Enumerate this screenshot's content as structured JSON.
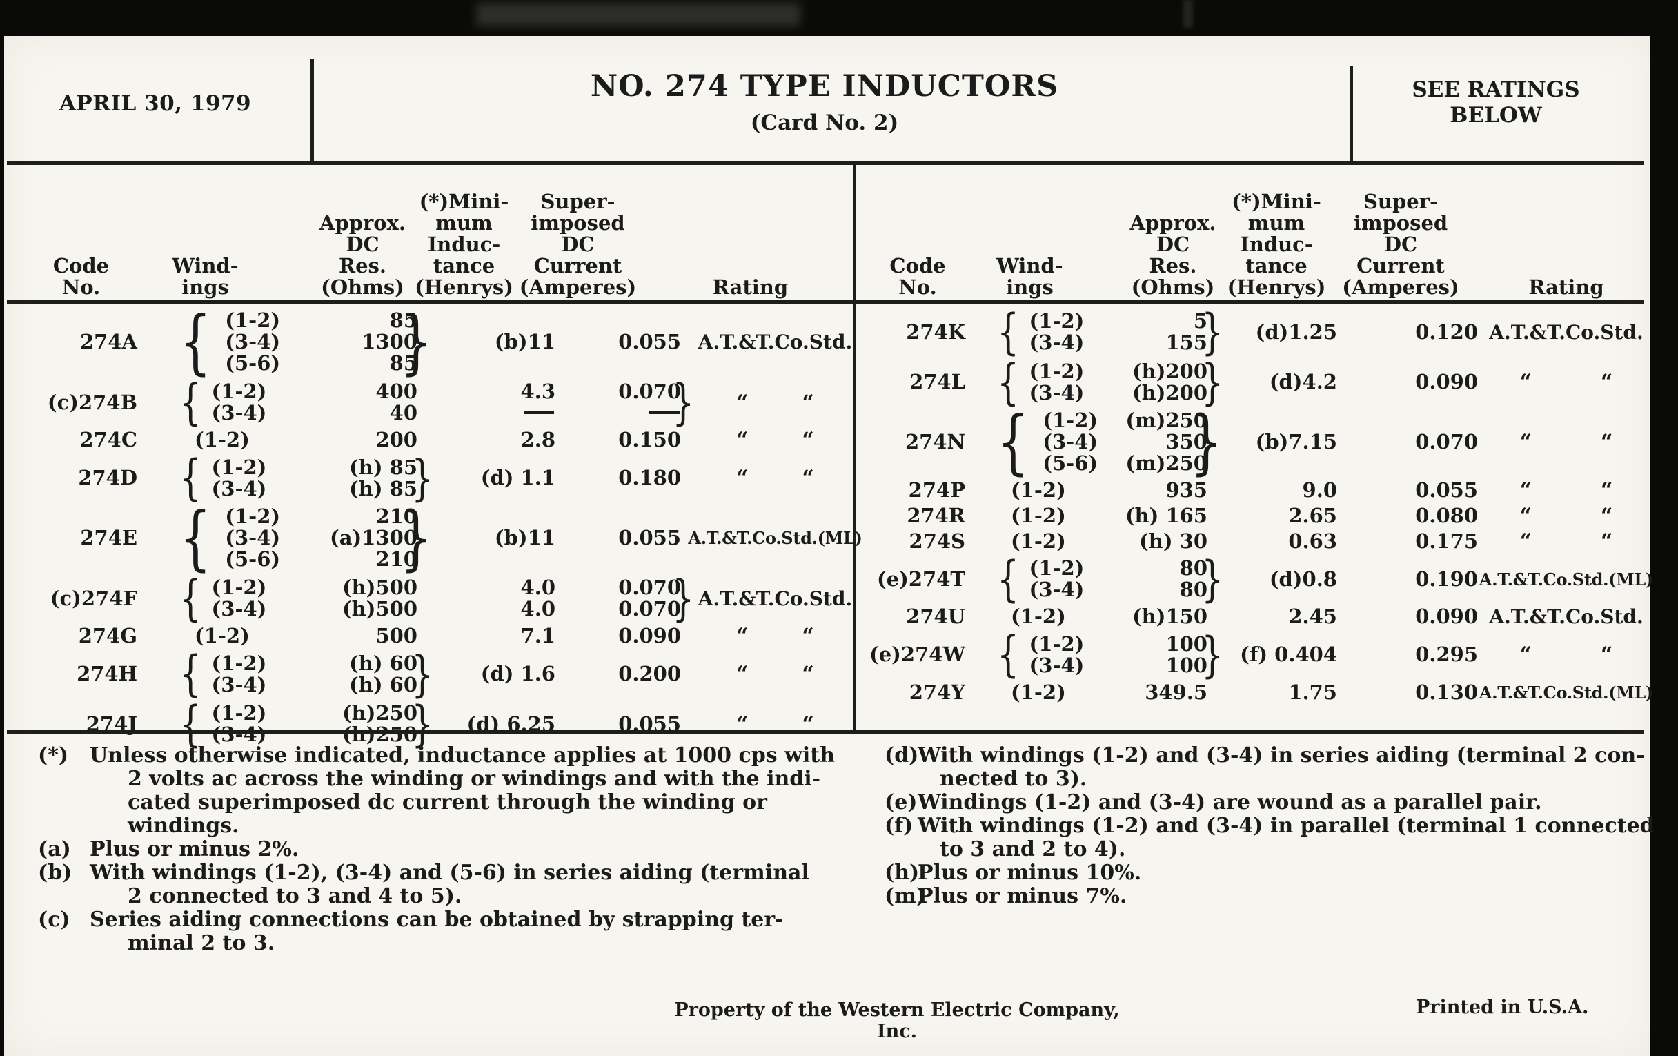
{
  "colors": {
    "paper": "#f7f5ef",
    "ink": "#1b1b1b",
    "frame": "#0a0a09"
  },
  "marks": {
    "ditto": "“"
  },
  "header": {
    "date": "APRIL 30, 1979",
    "title": "NO. 274 TYPE INDUCTORS",
    "subtitle": "(Card No. 2)",
    "see_ratings": {
      "line1": "SEE RATINGS",
      "line2": "BELOW"
    }
  },
  "columns": [
    {
      "id": "code",
      "lines": [
        "Code",
        "No."
      ]
    },
    {
      "id": "windings",
      "lines": [
        "Wind-",
        "ings"
      ]
    },
    {
      "id": "res",
      "lines": [
        "Approx.",
        "DC",
        "Res.",
        "(Ohms)"
      ]
    },
    {
      "id": "inductance",
      "lines": [
        "(*)Mini-",
        "mum",
        "Induc-",
        "tance",
        "(Henrys)"
      ]
    },
    {
      "id": "current",
      "lines": [
        "Super-",
        "imposed",
        "DC",
        "Current",
        "(Amperes)"
      ]
    },
    {
      "id": "rating",
      "lines": [
        "Rating"
      ]
    }
  ],
  "tables": {
    "left": [
      {
        "code": "274A",
        "w": [
          "(1-2)",
          "(3-4)",
          "(5-6)"
        ],
        "wb": true,
        "r": [
          "85",
          "1300",
          "85"
        ],
        "rb": true,
        "i": [
          "(b)11"
        ],
        "c": [
          "0.055"
        ],
        "cb": false,
        "rate": "A.T.&T.Co.Std."
      },
      {
        "code": "(c)274B",
        "w": [
          "(1-2)",
          "(3-4)"
        ],
        "wb": true,
        "r": [
          "400",
          "40"
        ],
        "rb": false,
        "i": [
          "4.3",
          "—"
        ],
        "c": [
          "0.070",
          "—"
        ],
        "cb": true,
        "rate": "ditto"
      },
      {
        "code": "274C",
        "w": [
          "(1-2)"
        ],
        "wb": false,
        "r": [
          "200"
        ],
        "rb": false,
        "i": [
          "2.8"
        ],
        "c": [
          "0.150"
        ],
        "cb": false,
        "rate": "ditto"
      },
      {
        "code": "274D",
        "w": [
          "(1-2)",
          "(3-4)"
        ],
        "wb": true,
        "r": [
          "(h) 85",
          "(h) 85"
        ],
        "rb": true,
        "i": [
          "(d) 1.1"
        ],
        "c": [
          "0.180"
        ],
        "cb": false,
        "rate": "ditto"
      },
      {
        "code": "274E",
        "w": [
          "(1-2)",
          "(3-4)",
          "(5-6)"
        ],
        "wb": true,
        "r": [
          "210",
          "(a)1300",
          "210"
        ],
        "rb": true,
        "i": [
          "(b)11"
        ],
        "c": [
          "0.055"
        ],
        "cb": false,
        "rate": "A.T.&T.Co.Std.(ML)"
      },
      {
        "code": "(c)274F",
        "w": [
          "(1-2)",
          "(3-4)"
        ],
        "wb": true,
        "r": [
          "(h)500",
          "(h)500"
        ],
        "rb": false,
        "i": [
          "4.0",
          "4.0"
        ],
        "c": [
          "0.070",
          "0.070"
        ],
        "cb": true,
        "rate": "A.T.&T.Co.Std."
      },
      {
        "code": "274G",
        "w": [
          "(1-2)"
        ],
        "wb": false,
        "r": [
          "500"
        ],
        "rb": false,
        "i": [
          "7.1"
        ],
        "c": [
          "0.090"
        ],
        "cb": false,
        "rate": "ditto"
      },
      {
        "code": "274H",
        "w": [
          "(1-2)",
          "(3-4)"
        ],
        "wb": true,
        "r": [
          "(h) 60",
          "(h) 60"
        ],
        "rb": true,
        "i": [
          "(d) 1.6"
        ],
        "c": [
          "0.200"
        ],
        "cb": false,
        "rate": "ditto"
      },
      {
        "code": "274J",
        "w": [
          "(1-2)",
          "(3-4)"
        ],
        "wb": true,
        "r": [
          "(h)250",
          "(h)250"
        ],
        "rb": true,
        "i": [
          "(d) 6.25"
        ],
        "c": [
          "0.055"
        ],
        "cb": false,
        "rate": "ditto"
      }
    ],
    "right": [
      {
        "code": "274K",
        "w": [
          "(1-2)",
          "(3-4)"
        ],
        "wb": true,
        "r": [
          "5",
          "155"
        ],
        "rb": true,
        "i": [
          "(d)1.25"
        ],
        "c": [
          "0.120"
        ],
        "cb": false,
        "rate": "A.T.&T.Co.Std."
      },
      {
        "code": "274L",
        "w": [
          "(1-2)",
          "(3-4)"
        ],
        "wb": true,
        "r": [
          "(h)200",
          "(h)200"
        ],
        "rb": true,
        "i": [
          "(d)4.2"
        ],
        "c": [
          "0.090"
        ],
        "cb": false,
        "rate": "ditto"
      },
      {
        "code": "274N",
        "w": [
          "(1-2)",
          "(3-4)",
          "(5-6)"
        ],
        "wb": true,
        "r": [
          "(m)250",
          "350",
          "(m)250"
        ],
        "rb": true,
        "i": [
          "(b)7.15"
        ],
        "c": [
          "0.070"
        ],
        "cb": false,
        "rate": "ditto"
      },
      {
        "code": "274P",
        "w": [
          "(1-2)"
        ],
        "wb": false,
        "r": [
          "935"
        ],
        "rb": false,
        "i": [
          "9.0"
        ],
        "c": [
          "0.055"
        ],
        "cb": false,
        "rate": "ditto"
      },
      {
        "code": "274R",
        "w": [
          "(1-2)"
        ],
        "wb": false,
        "r": [
          "(h) 165"
        ],
        "rb": false,
        "i": [
          "2.65"
        ],
        "c": [
          "0.080"
        ],
        "cb": false,
        "rate": "ditto"
      },
      {
        "code": "274S",
        "w": [
          "(1-2)"
        ],
        "wb": false,
        "r": [
          "(h) 30"
        ],
        "rb": false,
        "i": [
          "0.63"
        ],
        "c": [
          "0.175"
        ],
        "cb": false,
        "rate": "ditto"
      },
      {
        "code": "(e)274T",
        "w": [
          "(1-2)",
          "(3-4)"
        ],
        "wb": true,
        "r": [
          "80",
          "80"
        ],
        "rb": true,
        "i": [
          "(d)0.8"
        ],
        "c": [
          "0.190"
        ],
        "cb": false,
        "rate": "A.T.&T.Co.Std.(ML)"
      },
      {
        "code": "274U",
        "w": [
          "(1-2)"
        ],
        "wb": false,
        "r": [
          "(h)150"
        ],
        "rb": false,
        "i": [
          "2.45"
        ],
        "c": [
          "0.090"
        ],
        "cb": false,
        "rate": "A.T.&T.Co.Std."
      },
      {
        "code": "(e)274W",
        "w": [
          "(1-2)",
          "(3-4)"
        ],
        "wb": true,
        "r": [
          "100",
          "100"
        ],
        "rb": true,
        "i": [
          "(f) 0.404"
        ],
        "c": [
          "0.295"
        ],
        "cb": false,
        "rate": "ditto"
      },
      {
        "code": "274Y",
        "w": [
          "(1-2)"
        ],
        "wb": false,
        "r": [
          "349.5"
        ],
        "rb": false,
        "i": [
          "1.75"
        ],
        "c": [
          "0.130"
        ],
        "cb": false,
        "rate": "A.T.&T.Co.Std.(ML)"
      }
    ]
  },
  "footnotes": {
    "left": [
      {
        "key": "(*)",
        "lines": [
          "Unless otherwise indicated, inductance applies at 1000 cps with",
          "2 volts ac across the winding or windings and with the indi-",
          "cated superimposed dc current through the winding or",
          "windings."
        ]
      },
      {
        "key": "(a)",
        "lines": [
          "Plus or minus 2%."
        ]
      },
      {
        "key": "(b)",
        "lines": [
          "With windings (1-2), (3-4) and (5-6) in series aiding (terminal",
          "2 connected to 3 and 4 to 5)."
        ]
      },
      {
        "key": "(c)",
        "lines": [
          "Series aiding connections can be obtained by strapping ter-",
          "minal 2 to 3."
        ]
      }
    ],
    "right": [
      {
        "key": "(d)",
        "lines": [
          "With windings (1-2) and (3-4) in series aiding (terminal 2 con-",
          "nected to 3)."
        ]
      },
      {
        "key": "(e)",
        "lines": [
          "Windings (1-2) and (3-4) are wound as a parallel pair."
        ]
      },
      {
        "key": "(f)",
        "lines": [
          "With windings (1-2) and (3-4) in parallel (terminal 1 connected",
          "to 3 and 2 to 4)."
        ]
      },
      {
        "key": "(h)",
        "lines": [
          "Plus or minus 10%."
        ]
      },
      {
        "key": "(m)",
        "lines": [
          "Plus or minus 7%."
        ]
      }
    ]
  },
  "footer": {
    "property": "Property of the Western Electric Company, Inc.",
    "printed": "Printed in U.S.A."
  }
}
